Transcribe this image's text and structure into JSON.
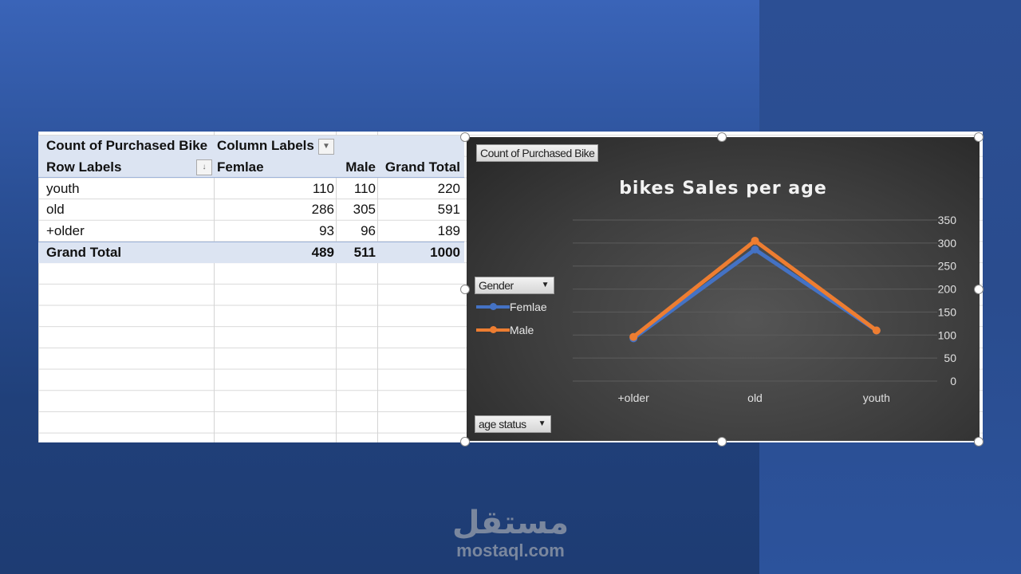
{
  "pivot": {
    "value_field": "Count of Purchased Bike",
    "column_labels": "Column Labels",
    "row_labels": "Row Labels",
    "headers": [
      "Femlae",
      "Male",
      "Grand Total"
    ],
    "rows": [
      {
        "label": "youth",
        "values": [
          "110",
          "110",
          "220"
        ]
      },
      {
        "label": "old",
        "values": [
          "286",
          "305",
          "591"
        ]
      },
      {
        "label": "+older",
        "values": [
          "93",
          "96",
          "189"
        ]
      }
    ],
    "grand_total": {
      "label": "Grand Total",
      "values": [
        "489",
        "511",
        "1000"
      ]
    }
  },
  "chart_buttons": {
    "value_field": "Count of Purchased Bike",
    "legend_field": "Gender",
    "axis_field": "age status"
  },
  "chart_data": {
    "type": "line",
    "title": "bikes Sales per age",
    "categories": [
      "+older",
      "old",
      "youth"
    ],
    "series": [
      {
        "name": "Femlae",
        "values": [
          93,
          286,
          110
        ],
        "color": "#4472c4"
      },
      {
        "name": "Male",
        "values": [
          96,
          305,
          110
        ],
        "color": "#ed7d31"
      }
    ],
    "ylim": [
      0,
      350
    ],
    "yticks": [
      "0",
      "50",
      "100",
      "150",
      "200",
      "250",
      "300",
      "350"
    ],
    "grid": true,
    "y_axis_position": "right",
    "legend_placement": "left"
  },
  "watermark": {
    "arabic": "مستقل",
    "latin": "mostaql.com"
  }
}
